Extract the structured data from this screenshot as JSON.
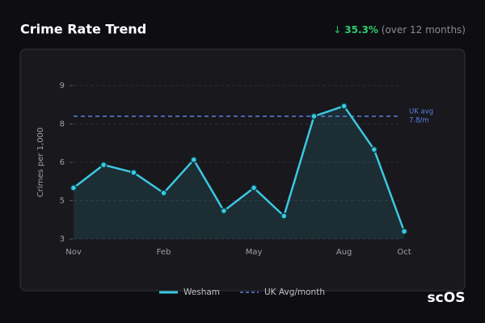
{
  "header": {
    "title": "Crime Rate Trend",
    "arrow": "↓",
    "change": "35.3%",
    "period": "(over 12 months)"
  },
  "chart_data": {
    "type": "line",
    "y_label": "Crimes per 1,000",
    "categories": [
      "Nov",
      null,
      null,
      "Feb",
      null,
      null,
      "May",
      null,
      null,
      "Aug",
      null,
      "Oct"
    ],
    "series": [
      {
        "name": "Wesham",
        "color": "#3cc8e0",
        "values": [
          5.0,
          5.9,
          5.6,
          4.8,
          6.1,
          4.1,
          5.0,
          3.9,
          7.8,
          8.2,
          6.5,
          3.3
        ]
      }
    ],
    "reference_line": {
      "name": "UK Avg/month",
      "value": 7.8,
      "label": "UK avg",
      "value_label": "7.8/m",
      "color": "#5b7fe0"
    },
    "ylim": [
      3,
      9
    ],
    "yticks": [
      3,
      {
        "value": 4.5,
        "label": "5"
      },
      6,
      {
        "value": 7.5,
        "label": "8"
      },
      9
    ],
    "grid": true
  },
  "watermark": "scOS"
}
